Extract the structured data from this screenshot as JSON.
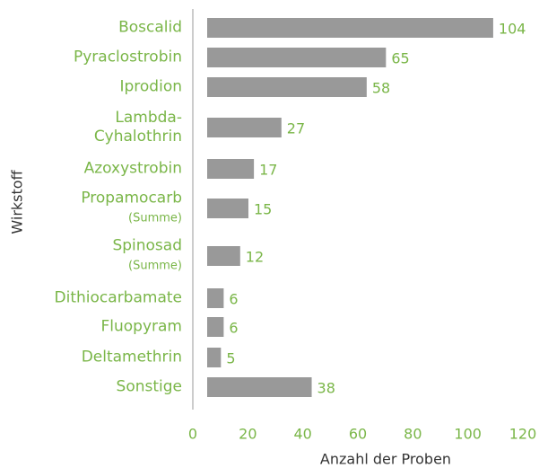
{
  "chart_data": {
    "type": "bar",
    "orientation": "horizontal",
    "categories": [
      "Boscalid",
      "Pyraclostrobin",
      "Iprodion",
      "Lambda-\nCyhalothrin",
      "Azoxystrobin",
      "Propamocarb\n(Summe)",
      "Spinosad\n(Summe)",
      "Dithiocarbamate",
      "Fluopyram",
      "Deltamethrin",
      "Sonstige"
    ],
    "values": [
      104,
      65,
      58,
      27,
      17,
      15,
      12,
      6,
      6,
      5,
      38
    ],
    "color": "#999999",
    "label_color": "#7ab648",
    "xlim": [
      0,
      120
    ],
    "xticks": [
      0,
      20,
      40,
      60,
      80,
      100,
      120
    ],
    "xlabel": "Anzahl der Proben",
    "ylabel": "Wirkstoff"
  }
}
